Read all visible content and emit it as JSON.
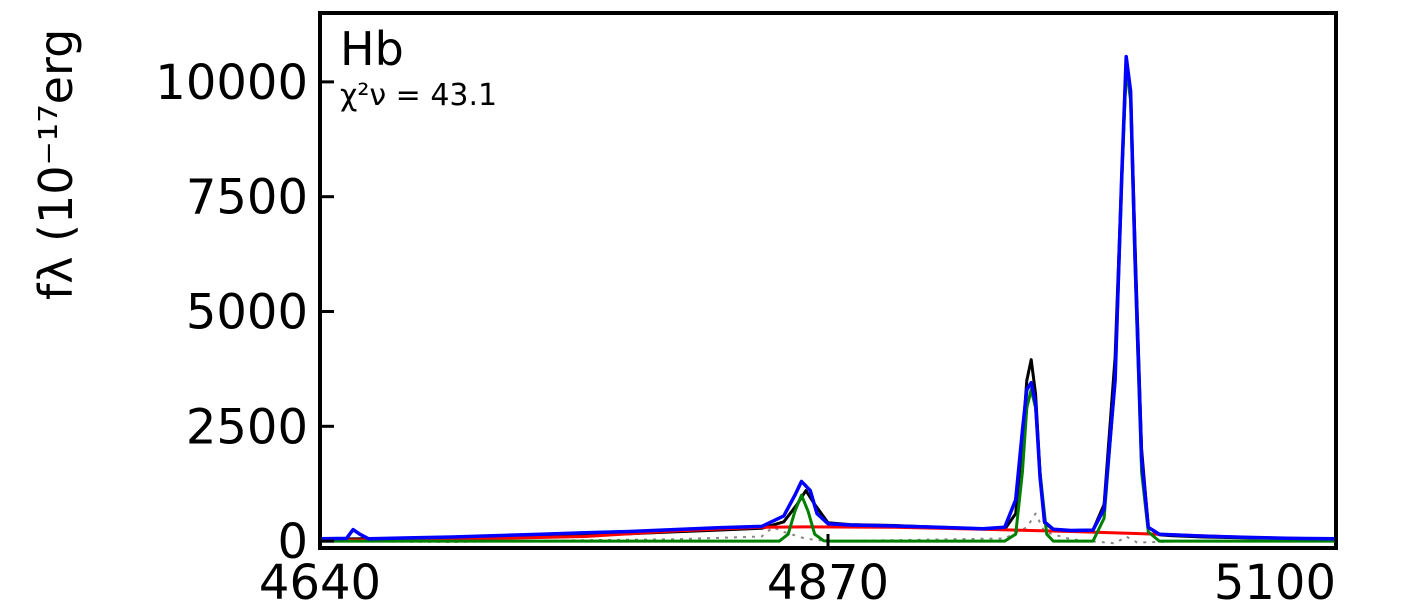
{
  "chart_data": {
    "type": "line",
    "panel_label": "Hb",
    "fit_stat": "χ²ν = 43.1",
    "ylabel": "fλ (10⁻¹⁷erg",
    "xlim": [
      4640,
      5100
    ],
    "ylim": [
      -150,
      11500
    ],
    "x_ticks": [
      4640,
      4870,
      5100
    ],
    "y_ticks": [
      0,
      2500,
      5000,
      7500,
      10000
    ],
    "grid": false,
    "series": [
      {
        "role": "data",
        "color": "#000000",
        "x": [
          4640,
          4660,
          4680,
          4700,
          4720,
          4740,
          4760,
          4780,
          4800,
          4820,
          4840,
          4850,
          4856,
          4860,
          4864,
          4870,
          4880,
          4900,
          4920,
          4940,
          4950,
          4955,
          4958,
          4960,
          4962,
          4964,
          4966,
          4968,
          4972,
          4980,
          4990,
          4995,
          5000,
          5003,
          5005,
          5007,
          5009,
          5012,
          5015,
          5020,
          5025,
          5040,
          5060,
          5080,
          5100
        ],
        "y": [
          40,
          50,
          30,
          60,
          80,
          100,
          130,
          160,
          200,
          240,
          280,
          420,
          800,
          1100,
          800,
          400,
          360,
          340,
          300,
          270,
          260,
          600,
          2200,
          3500,
          3950,
          3200,
          1500,
          400,
          250,
          230,
          240,
          800,
          4000,
          8000,
          10300,
          9800,
          6500,
          2000,
          300,
          140,
          120,
          90,
          70,
          60,
          50
        ]
      },
      {
        "role": "total model",
        "color": "#0000ff",
        "x": [
          4640,
          4652,
          4655,
          4658,
          4662,
          4680,
          4700,
          4720,
          4740,
          4760,
          4780,
          4800,
          4820,
          4840,
          4850,
          4855,
          4858,
          4862,
          4865,
          4870,
          4880,
          4900,
          4920,
          4940,
          4950,
          4955,
          4958,
          4960,
          4962,
          4964,
          4966,
          4968,
          4972,
          4980,
          4990,
          4995,
          5000,
          5003,
          5005,
          5007,
          5009,
          5012,
          5015,
          5020,
          5040,
          5060,
          5080,
          5100
        ],
        "y": [
          50,
          60,
          250,
          150,
          50,
          70,
          90,
          120,
          150,
          180,
          210,
          250,
          290,
          320,
          550,
          1000,
          1300,
          1100,
          600,
          380,
          350,
          330,
          300,
          270,
          300,
          900,
          2400,
          3300,
          3450,
          3000,
          1400,
          420,
          260,
          230,
          240,
          700,
          3500,
          8000,
          10550,
          9800,
          6200,
          1800,
          300,
          150,
          110,
          80,
          60,
          50
        ]
      },
      {
        "role": "broad component",
        "color": "#ff0000",
        "x": [
          4640,
          4700,
          4760,
          4800,
          4840,
          4860,
          4900,
          4940,
          4980,
          5020,
          5060,
          5100
        ],
        "y": [
          20,
          40,
          100,
          220,
          300,
          310,
          300,
          260,
          210,
          150,
          80,
          40
        ]
      },
      {
        "role": "narrow component",
        "color": "#008000",
        "x": [
          4640,
          4848,
          4852,
          4855,
          4858,
          4861,
          4864,
          4868,
          4870,
          4950,
          4955,
          4958,
          4960,
          4962,
          4964,
          4966,
          4969,
          4972,
          4990,
          4995,
          5000,
          5003,
          5005,
          5007,
          5009,
          5012,
          5015,
          5020,
          5100
        ],
        "y": [
          0,
          0,
          150,
          650,
          1000,
          650,
          150,
          10,
          0,
          0,
          150,
          1500,
          2900,
          3300,
          2900,
          1500,
          150,
          0,
          0,
          500,
          3500,
          7800,
          10300,
          9600,
          6000,
          1500,
          200,
          0,
          0
        ]
      },
      {
        "role": "residual",
        "color": "#888888",
        "dashed": true,
        "x": [
          4640,
          4700,
          4760,
          4800,
          4840,
          4845,
          4850,
          4860,
          4870,
          4900,
          4950,
          4960,
          4964,
          4968,
          4980,
          5000,
          5005,
          5010,
          5040,
          5100
        ],
        "y": [
          0,
          -20,
          20,
          40,
          100,
          300,
          200,
          50,
          0,
          20,
          60,
          300,
          600,
          200,
          40,
          -50,
          100,
          -30,
          10,
          0
        ]
      }
    ]
  }
}
